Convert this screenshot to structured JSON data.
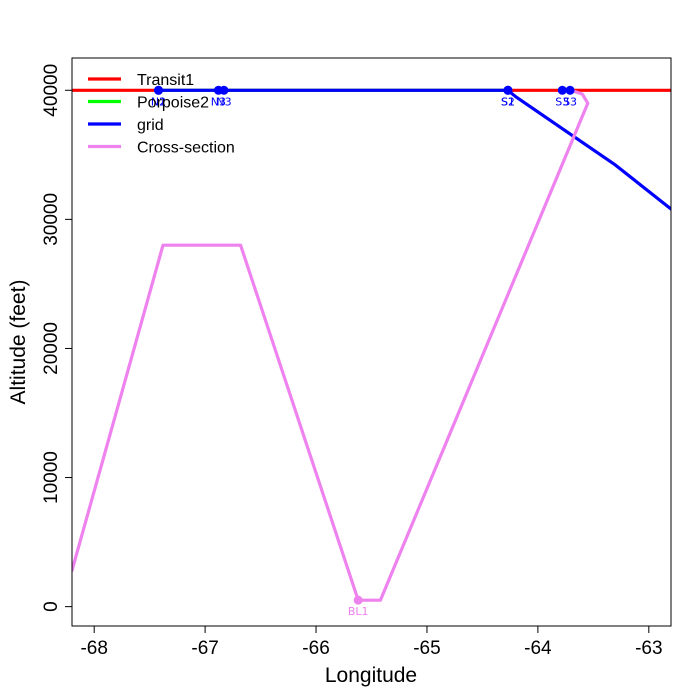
{
  "chart_data": {
    "type": "line",
    "xlabel": "Longitude",
    "ylabel": "Altitude (feet)",
    "xlim": [
      -68.2,
      -62.8
    ],
    "ylim": [
      -1500,
      42500
    ],
    "x_ticks": [
      -68,
      -67,
      -66,
      -65,
      -64,
      -63
    ],
    "x_tick_labels": [
      "-68",
      "-67",
      "-66",
      "-65",
      "-64",
      "-63"
    ],
    "y_ticks": [
      0,
      10000,
      20000,
      30000,
      40000
    ],
    "y_tick_labels": [
      "0",
      "10000",
      "20000",
      "30000",
      "40000"
    ],
    "legend_position": "top-left",
    "legend": [
      {
        "label": "Transit1",
        "color": "#ff0000"
      },
      {
        "label": "Porpoise2",
        "color": "#00ff00"
      },
      {
        "label": "grid",
        "color": "#0000ff"
      },
      {
        "label": "Cross-section",
        "color": "#ee82ee"
      }
    ],
    "series": [
      {
        "name": "Transit1",
        "color": "#ff0000",
        "x": [
          -68.2,
          -62.8
        ],
        "y": [
          40000,
          40000
        ]
      },
      {
        "name": "Porpoise2",
        "color": "#00ff00",
        "x": [
          -67.42,
          -64.27
        ],
        "y": [
          40000,
          40000
        ]
      },
      {
        "name": "grid",
        "color": "#0000ff",
        "x": [
          -67.42,
          -66.88,
          -66.83,
          -64.27,
          -64.2,
          -63.3,
          -62.8
        ],
        "y": [
          40000,
          40000,
          40000,
          40000,
          39500,
          34200,
          30800
        ]
      },
      {
        "name": "Cross-section",
        "color": "#ee82ee",
        "x": [
          -68.2,
          -67.38,
          -66.68,
          -65.62,
          -65.42,
          -63.55,
          -63.6,
          -63.7
        ],
        "y": [
          2800,
          28000,
          28000,
          500,
          500,
          39000,
          39700,
          40000
        ]
      }
    ],
    "points": [
      {
        "label": "N2",
        "x": -67.42,
        "y": 40000,
        "color": "#0000ff"
      },
      {
        "label": "N1",
        "x": -67.42,
        "y": 40000,
        "color": "#0000ff"
      },
      {
        "label": "S2",
        "x": -64.27,
        "y": 40000,
        "color": "#0000ff"
      },
      {
        "label": "S1",
        "x": -64.27,
        "y": 40000,
        "color": "#0000ff"
      },
      {
        "label": "S3",
        "x": -63.71,
        "y": 40000,
        "color": "#0000ff"
      },
      {
        "label": "S3",
        "x": -63.78,
        "y": 40000,
        "color": "#0000ff"
      },
      {
        "label": "N3",
        "x": -66.83,
        "y": 40000,
        "color": "#0000ff"
      },
      {
        "label": "N3",
        "x": -66.88,
        "y": 40000,
        "color": "#0000ff"
      },
      {
        "label": "BL1",
        "x": -65.62,
        "y": 500,
        "color": "#ee82ee"
      }
    ]
  }
}
